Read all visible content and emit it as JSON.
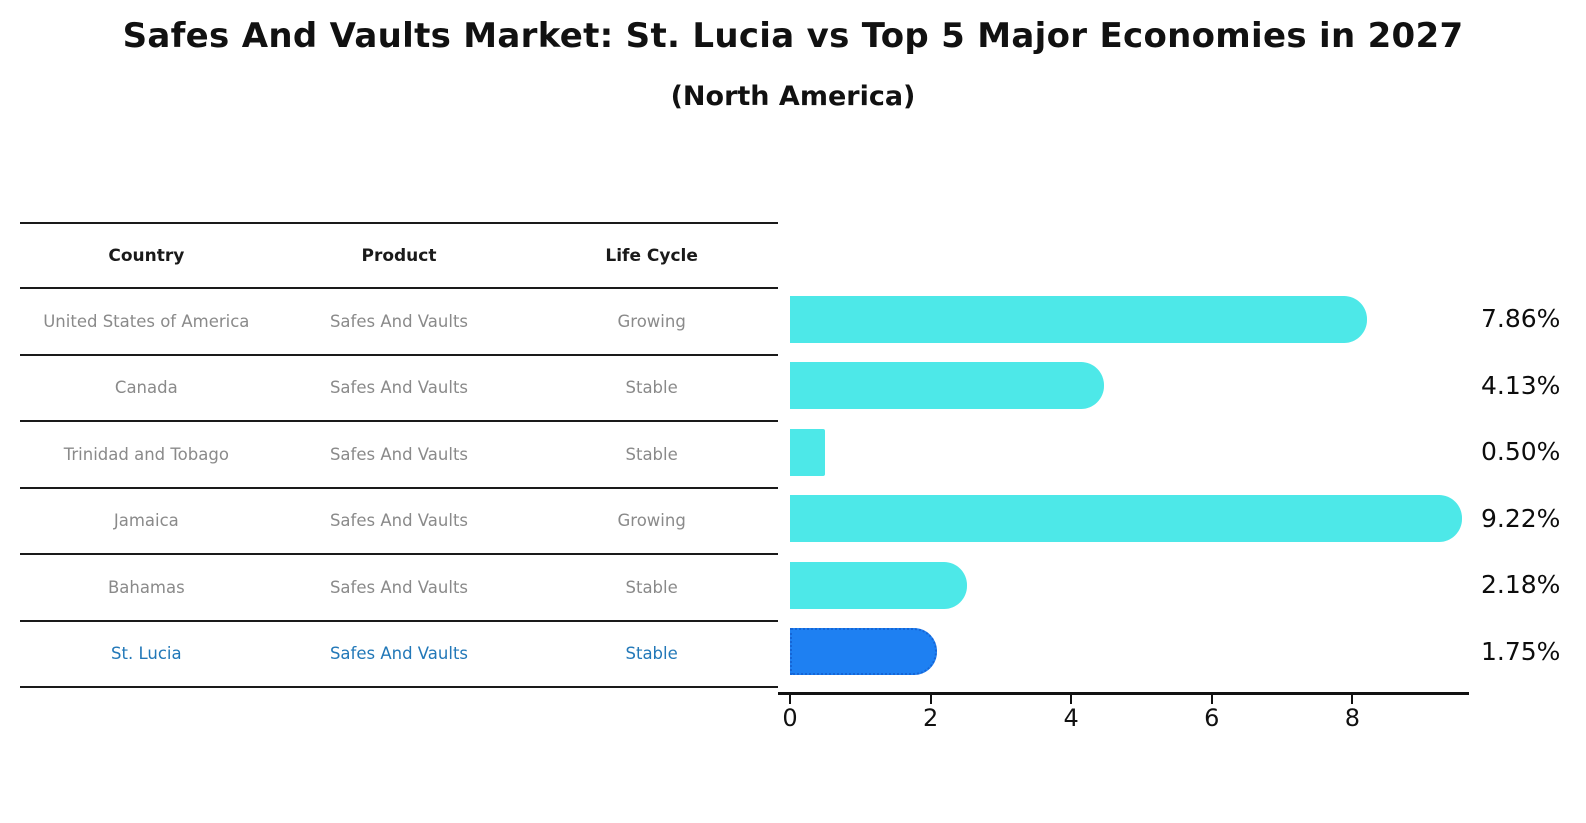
{
  "title": "Safes And Vaults Market: St. Lucia vs Top 5 Major Economies in 2027",
  "subtitle": "(North America)",
  "table": {
    "headers": [
      "Country",
      "Product",
      "Life Cycle"
    ],
    "rows": [
      {
        "country": "United States of America",
        "product": "Safes And Vaults",
        "life_cycle": "Growing",
        "highlight": false
      },
      {
        "country": "Canada",
        "product": "Safes And Vaults",
        "life_cycle": "Stable",
        "highlight": false
      },
      {
        "country": "Trinidad and Tobago",
        "product": "Safes And Vaults",
        "life_cycle": "Stable",
        "highlight": false
      },
      {
        "country": "Jamaica",
        "product": "Safes And Vaults",
        "life_cycle": "Growing",
        "highlight": false
      },
      {
        "country": "Bahamas",
        "product": "Safes And Vaults",
        "life_cycle": "Stable",
        "highlight": false
      },
      {
        "country": "St. Lucia",
        "product": "Safes And Vaults",
        "life_cycle": "Stable",
        "highlight": true
      }
    ]
  },
  "chart_data": {
    "type": "bar",
    "orientation": "horizontal",
    "title": "Safes And Vaults Market: St. Lucia vs Top 5 Major Economies in 2027",
    "subtitle": "(North America)",
    "categories": [
      "United States of America",
      "Canada",
      "Trinidad and Tobago",
      "Jamaica",
      "Bahamas",
      "St. Lucia"
    ],
    "values": [
      7.86,
      4.13,
      0.5,
      9.22,
      2.18,
      1.75
    ],
    "value_labels": [
      "7.86%",
      "4.13%",
      "0.50%",
      "9.22%",
      "2.18%",
      "1.75%"
    ],
    "x_ticks": [
      0,
      2,
      4,
      6,
      8
    ],
    "xlim": [
      0,
      9.66
    ],
    "xlabel": "",
    "ylabel": "",
    "grid": false,
    "legend": "none",
    "highlight_category": "St. Lucia"
  },
  "colors": {
    "bar": "#4DE8E8",
    "highlight_bar": "#1E80F2",
    "highlight_bar_border": "#1565D6",
    "highlight_text": "#2278b8",
    "row_text": "#8a8a8a",
    "header_text": "#1a1a1a",
    "title_text": "#111111",
    "axis": "#111111"
  }
}
